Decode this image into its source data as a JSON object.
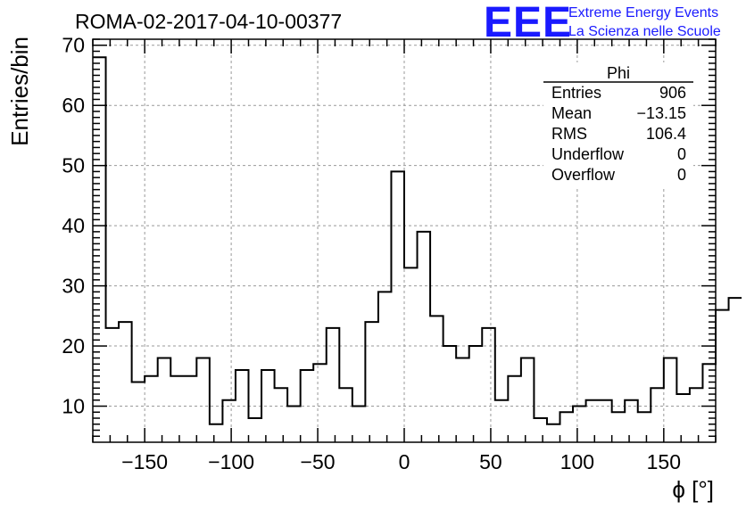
{
  "chart_data": {
    "type": "bar",
    "title": "ROMA-02-2017-04-10-00377",
    "xlabel": "ϕ [°]",
    "ylabel": "Entries/bin",
    "xlim": [
      -180,
      180
    ],
    "ylim": [
      4,
      71
    ],
    "bin_width": 7.5,
    "grid": true,
    "x_ticks": [
      -150,
      -100,
      -50,
      0,
      50,
      100,
      150
    ],
    "x_tick_labels": [
      "−150",
      "−100",
      "−50",
      "0",
      "50",
      "100",
      "150"
    ],
    "y_ticks": [
      10,
      20,
      30,
      40,
      50,
      60,
      70
    ],
    "y_tick_labels": [
      "10",
      "20",
      "30",
      "40",
      "50",
      "60",
      "70"
    ],
    "bin_edges_start": -180,
    "values": [
      68,
      23,
      24,
      14,
      15,
      18,
      15,
      15,
      18,
      7,
      11,
      16,
      8,
      16,
      13,
      10,
      16,
      17,
      23,
      13,
      10,
      24,
      29,
      49,
      33,
      39,
      25,
      20,
      18,
      20,
      23,
      11,
      15,
      18,
      8,
      7,
      9,
      10,
      11,
      11,
      9,
      11,
      9,
      13,
      18,
      12,
      13,
      17,
      26,
      28
    ],
    "stats_box": {
      "title": "Phi",
      "rows": [
        {
          "label": "Entries",
          "value": "906"
        },
        {
          "label": "Mean",
          "value": "−13.15"
        },
        {
          "label": "RMS",
          "value": "106.4"
        },
        {
          "label": "Underflow",
          "value": "0"
        },
        {
          "label": "Overflow",
          "value": "0"
        }
      ]
    }
  },
  "logo": {
    "letters": "EEE",
    "line1": "Extreme Energy Events",
    "line2": "La Scienza nelle Scuole",
    "color": "#1a1aff"
  }
}
